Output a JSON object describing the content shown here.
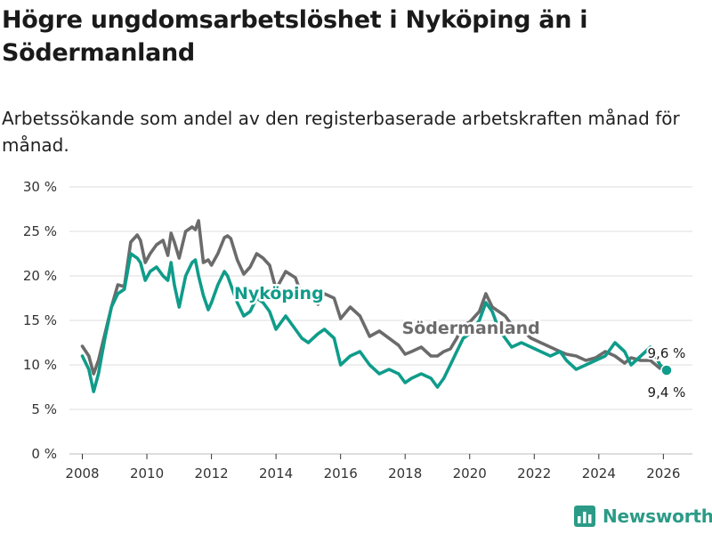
{
  "title": "Högre ungdomsarbetslöshet i Nyköping än i Södermanland",
  "subtitle": "Arbetssökande som andel av den registerbaserade arbetskraften månad för månad.",
  "brand": "Newsworthy",
  "colors": {
    "nykoping": "#0f9c8a",
    "sodermanland": "#6b6b6b",
    "grid": "#dddddd",
    "brand": "#2b9b87"
  },
  "chart_data": {
    "type": "line",
    "title": "Högre ungdomsarbetslöshet i Nyköping än i Södermanland",
    "xlabel": "",
    "ylabel": "",
    "xlim": [
      2007.6,
      2026.9
    ],
    "ylim": [
      0,
      30
    ],
    "y_ticks": [
      0,
      5,
      10,
      15,
      20,
      25,
      30
    ],
    "y_tick_labels": [
      "0 %",
      "5 %",
      "10 %",
      "15 %",
      "20 %",
      "25 %",
      "30 %"
    ],
    "x_ticks": [
      2008,
      2010,
      2012,
      2014,
      2016,
      2018,
      2020,
      2022,
      2024,
      2026
    ],
    "x_tick_labels": [
      "2008",
      "2010",
      "2012",
      "2014",
      "2016",
      "2018",
      "2020",
      "2022",
      "2024",
      "2026"
    ],
    "grid": true,
    "series": [
      {
        "name": "Södermanland",
        "label": "Södermanland",
        "end_label": "9,6 %",
        "end_value": 9.6,
        "x": [
          2008.0,
          2008.2,
          2008.35,
          2008.5,
          2008.7,
          2008.9,
          2009.1,
          2009.3,
          2009.5,
          2009.7,
          2009.8,
          2009.95,
          2010.1,
          2010.3,
          2010.5,
          2010.65,
          2010.75,
          2010.85,
          2011.0,
          2011.2,
          2011.4,
          2011.5,
          2011.6,
          2011.75,
          2011.9,
          2012.0,
          2012.2,
          2012.4,
          2012.5,
          2012.6,
          2012.8,
          2013.0,
          2013.2,
          2013.4,
          2013.6,
          2013.8,
          2014.0,
          2014.3,
          2014.6,
          2014.8,
          2015.0,
          2015.3,
          2015.5,
          2015.8,
          2016.0,
          2016.3,
          2016.6,
          2016.9,
          2017.2,
          2017.5,
          2017.8,
          2018.0,
          2018.2,
          2018.5,
          2018.8,
          2019.0,
          2019.2,
          2019.4,
          2019.6,
          2019.8,
          2020.0,
          2020.3,
          2020.5,
          2020.7,
          2020.9,
          2021.1,
          2021.3,
          2021.6,
          2021.9,
          2022.2,
          2022.5,
          2022.8,
          2023.0,
          2023.3,
          2023.6,
          2023.9,
          2024.2,
          2024.5,
          2024.8,
          2025.0,
          2025.3,
          2025.6,
          2025.9,
          2026.1
        ],
        "values": [
          12.1,
          11.0,
          9.0,
          10.5,
          13.5,
          16.5,
          19.0,
          18.8,
          23.8,
          24.6,
          24.0,
          21.5,
          22.5,
          23.5,
          24.0,
          22.3,
          24.8,
          23.8,
          22.0,
          25.0,
          25.5,
          25.2,
          26.2,
          21.5,
          21.8,
          21.2,
          22.5,
          24.3,
          24.5,
          24.2,
          21.8,
          20.2,
          21.0,
          22.5,
          22.0,
          21.2,
          18.5,
          20.5,
          19.8,
          17.8,
          18.2,
          16.8,
          18.0,
          17.5,
          15.2,
          16.5,
          15.5,
          13.2,
          13.8,
          13.0,
          12.2,
          11.2,
          11.5,
          12.0,
          11.0,
          11.0,
          11.5,
          11.8,
          13.0,
          14.5,
          14.8,
          16.0,
          18.0,
          16.5,
          16.0,
          15.5,
          14.5,
          14.0,
          13.0,
          12.5,
          12.0,
          11.5,
          11.2,
          11.0,
          10.5,
          10.8,
          11.5,
          11.0,
          10.2,
          10.8,
          10.5,
          10.5,
          9.6,
          9.6
        ]
      },
      {
        "name": "Nyköping",
        "label": "Nyköping",
        "end_label": "9,4 %",
        "end_value": 9.4,
        "x": [
          2008.0,
          2008.2,
          2008.35,
          2008.5,
          2008.7,
          2008.9,
          2009.1,
          2009.3,
          2009.5,
          2009.7,
          2009.8,
          2009.95,
          2010.1,
          2010.3,
          2010.5,
          2010.65,
          2010.75,
          2010.85,
          2011.0,
          2011.2,
          2011.4,
          2011.5,
          2011.6,
          2011.75,
          2011.9,
          2012.0,
          2012.2,
          2012.4,
          2012.5,
          2012.6,
          2012.8,
          2013.0,
          2013.2,
          2013.4,
          2013.6,
          2013.8,
          2014.0,
          2014.3,
          2014.6,
          2014.8,
          2015.0,
          2015.3,
          2015.5,
          2015.8,
          2016.0,
          2016.3,
          2016.6,
          2016.9,
          2017.2,
          2017.5,
          2017.8,
          2018.0,
          2018.2,
          2018.5,
          2018.8,
          2019.0,
          2019.2,
          2019.4,
          2019.6,
          2019.8,
          2020.0,
          2020.3,
          2020.5,
          2020.7,
          2020.9,
          2021.1,
          2021.3,
          2021.6,
          2021.9,
          2022.2,
          2022.5,
          2022.8,
          2023.0,
          2023.3,
          2023.6,
          2023.9,
          2024.2,
          2024.5,
          2024.8,
          2025.0,
          2025.3,
          2025.6,
          2025.9,
          2026.1
        ],
        "values": [
          11.0,
          9.5,
          7.0,
          9.0,
          13.0,
          16.5,
          18.0,
          18.5,
          22.5,
          22.0,
          21.5,
          19.5,
          20.5,
          21.0,
          20.0,
          19.5,
          21.5,
          19.0,
          16.5,
          20.0,
          21.5,
          21.8,
          20.0,
          17.8,
          16.2,
          17.0,
          19.0,
          20.5,
          20.0,
          19.0,
          17.0,
          15.5,
          16.0,
          17.5,
          17.0,
          16.0,
          14.0,
          15.5,
          14.0,
          13.0,
          12.5,
          13.5,
          14.0,
          13.0,
          10.0,
          11.0,
          11.5,
          10.0,
          9.0,
          9.5,
          9.0,
          8.0,
          8.5,
          9.0,
          8.5,
          7.5,
          8.5,
          10.0,
          11.5,
          13.0,
          13.5,
          15.0,
          17.0,
          16.0,
          14.0,
          13.0,
          12.0,
          12.5,
          12.0,
          11.5,
          11.0,
          11.5,
          10.5,
          9.5,
          10.0,
          10.5,
          11.0,
          12.5,
          11.5,
          10.0,
          11.0,
          12.0,
          10.0,
          9.4
        ]
      }
    ]
  }
}
